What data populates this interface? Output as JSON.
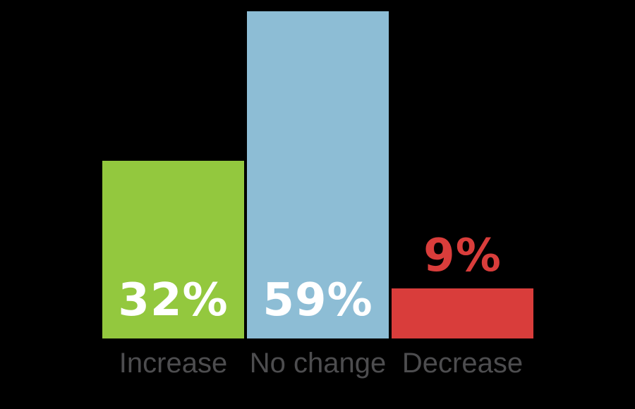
{
  "background_color": "#000000",
  "chart_data": {
    "type": "bar",
    "title": "",
    "xlabel": "",
    "ylabel": "",
    "categories": [
      "Increase",
      "No change",
      "Decrease"
    ],
    "values": [
      32,
      59,
      9
    ],
    "value_labels": [
      "32%",
      "59%",
      "9%"
    ],
    "bar_colors": [
      "#93C83E",
      "#8DBDD5",
      "#D93D3B"
    ],
    "value_label_colors": [
      "#FFFFFF",
      "#FFFFFF",
      "#D93D3B"
    ],
    "value_label_positions": [
      "inside",
      "inside",
      "above"
    ],
    "category_label_color": "#4D4D4F",
    "ylim": [
      0,
      59
    ],
    "axes_visible": false,
    "gridlines": false,
    "legend": "none"
  }
}
